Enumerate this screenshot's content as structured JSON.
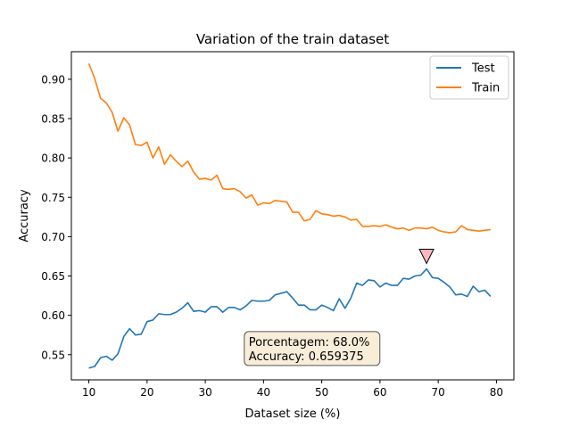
{
  "chart_data": {
    "type": "line",
    "title": "Variation of the train dataset",
    "xlabel": "Dataset size (%)",
    "ylabel": "Accuracy",
    "xlim": [
      7,
      83
    ],
    "ylim": [
      0.518,
      0.935
    ],
    "xticks": [
      10,
      20,
      30,
      40,
      50,
      60,
      70,
      80
    ],
    "yticks": [
      0.55,
      0.6,
      0.65,
      0.7,
      0.75,
      0.8,
      0.85,
      0.9
    ],
    "xtick_labels": [
      "10",
      "20",
      "30",
      "40",
      "50",
      "60",
      "70",
      "80"
    ],
    "ytick_labels": [
      "0.55",
      "0.60",
      "0.65",
      "0.70",
      "0.75",
      "0.80",
      "0.85",
      "0.90"
    ],
    "grid": false,
    "legend_position": "top-right",
    "x": [
      10,
      11,
      12,
      13,
      14,
      15,
      16,
      17,
      18,
      19,
      20,
      21,
      22,
      23,
      24,
      25,
      26,
      27,
      28,
      29,
      30,
      31,
      32,
      33,
      34,
      35,
      36,
      37,
      38,
      39,
      40,
      41,
      42,
      43,
      44,
      45,
      46,
      47,
      48,
      49,
      50,
      51,
      52,
      53,
      54,
      55,
      56,
      57,
      58,
      59,
      60,
      61,
      62,
      63,
      64,
      65,
      66,
      67,
      68,
      69,
      70,
      71,
      72,
      73,
      74,
      75,
      76,
      77,
      78,
      79
    ],
    "series": [
      {
        "name": "Test",
        "color": "#1f77b4",
        "values": [
          0.533,
          0.535,
          0.546,
          0.548,
          0.543,
          0.551,
          0.573,
          0.583,
          0.575,
          0.576,
          0.592,
          0.594,
          0.602,
          0.601,
          0.601,
          0.604,
          0.609,
          0.616,
          0.605,
          0.606,
          0.604,
          0.611,
          0.611,
          0.604,
          0.61,
          0.61,
          0.607,
          0.612,
          0.619,
          0.618,
          0.618,
          0.619,
          0.626,
          0.628,
          0.63,
          0.622,
          0.613,
          0.613,
          0.607,
          0.607,
          0.613,
          0.61,
          0.606,
          0.621,
          0.609,
          0.622,
          0.641,
          0.638,
          0.645,
          0.644,
          0.636,
          0.641,
          0.638,
          0.638,
          0.647,
          0.646,
          0.65,
          0.651,
          0.659,
          0.648,
          0.647,
          0.642,
          0.636,
          0.626,
          0.627,
          0.624,
          0.637,
          0.63,
          0.632,
          0.624
        ]
      },
      {
        "name": "Train",
        "color": "#ff7f0e",
        "values": [
          0.92,
          0.901,
          0.876,
          0.87,
          0.858,
          0.834,
          0.851,
          0.842,
          0.817,
          0.816,
          0.82,
          0.8,
          0.814,
          0.792,
          0.804,
          0.796,
          0.789,
          0.796,
          0.782,
          0.773,
          0.774,
          0.772,
          0.778,
          0.761,
          0.76,
          0.761,
          0.757,
          0.749,
          0.753,
          0.74,
          0.743,
          0.742,
          0.746,
          0.745,
          0.744,
          0.731,
          0.731,
          0.72,
          0.722,
          0.733,
          0.729,
          0.728,
          0.726,
          0.727,
          0.725,
          0.721,
          0.722,
          0.713,
          0.713,
          0.714,
          0.713,
          0.715,
          0.712,
          0.71,
          0.711,
          0.708,
          0.711,
          0.711,
          0.71,
          0.712,
          0.708,
          0.706,
          0.705,
          0.706,
          0.714,
          0.709,
          0.708,
          0.707,
          0.708,
          0.709
        ]
      }
    ],
    "marker": {
      "x": 68,
      "y": 0.675,
      "shape": "triangle-down",
      "color": "#ffb6c1"
    },
    "annotation": {
      "lines": [
        "Porcentagem: 68.0%",
        "Accuracy: 0.659375"
      ],
      "x": 37,
      "y": 0.56,
      "box_color": "#f5e6c8"
    }
  }
}
